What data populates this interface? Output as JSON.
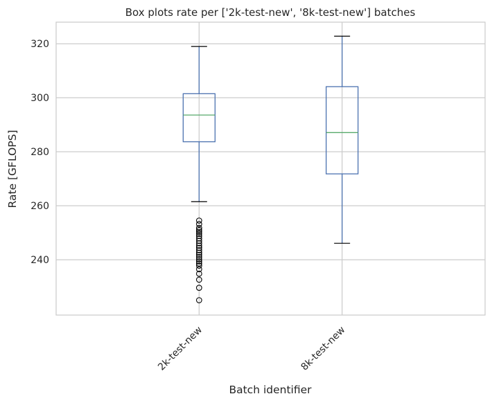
{
  "chart_data": {
    "type": "box",
    "title": "Box plots rate per ['2k-test-new', '8k-test-new'] batches",
    "xlabel": "Batch identifier",
    "ylabel": "Rate [GFLOPS]",
    "ylim": [
      219.5,
      328
    ],
    "yticks": [
      240,
      260,
      280,
      300,
      320
    ],
    "grid": true,
    "categories": [
      "2k-test-new",
      "8k-test-new"
    ],
    "boxes": [
      {
        "name": "2k-test-new",
        "whisker_low": 261.5,
        "q1": 283.7,
        "median": 293.6,
        "q3": 301.5,
        "whisker_high": 319.0,
        "outliers": [
          254.5,
          253.2,
          251.8,
          251.0,
          250.3,
          249.6,
          248.8,
          247.9,
          247.0,
          246.1,
          245.2,
          244.4,
          243.5,
          242.6,
          241.8,
          241.0,
          240.2,
          239.4,
          238.6,
          237.8,
          236.5,
          234.8,
          232.6,
          229.6,
          225.0
        ]
      },
      {
        "name": "8k-test-new",
        "whisker_low": 246.1,
        "q1": 271.8,
        "median": 287.1,
        "q3": 304.1,
        "whisker_high": 322.8,
        "outliers": []
      }
    ],
    "colors": {
      "box": "#4c72b0",
      "median": "#55a868",
      "cap": "#000000",
      "flier": "#000000",
      "grid": "#cccccc",
      "spine": "#cccccc"
    }
  }
}
